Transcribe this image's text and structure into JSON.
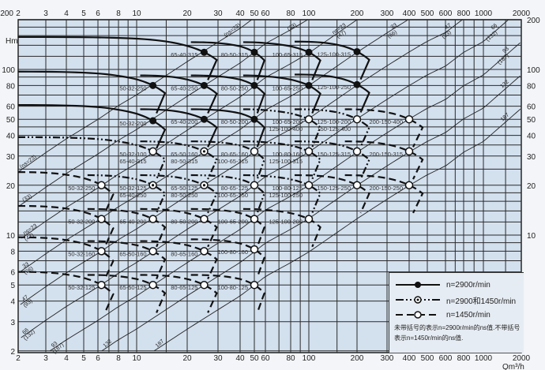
{
  "chart_data": {
    "type": "line",
    "title": "",
    "xlabel": "Qm³/h",
    "ylabel": "Hm",
    "x_scale": "log",
    "y_scale": "log",
    "xlim": [
      2,
      2000
    ],
    "ylim": [
      2,
      200
    ],
    "grid": true,
    "x_ticks": [
      "2",
      "3",
      "4",
      "5",
      "6",
      "8",
      "10",
      "20",
      "30",
      "40",
      "50",
      "60",
      "80",
      "100",
      "200",
      "300",
      "400",
      "500",
      "600",
      "800",
      "1000",
      "2000"
    ],
    "y_ticks_left": [
      "100",
      "80",
      "60",
      "50",
      "40",
      "30",
      "20",
      "10",
      "8",
      "6",
      "5",
      "4",
      "3",
      "2"
    ],
    "y_ticks_right": [
      "200",
      "100",
      "80",
      "60",
      "50",
      "40",
      "30",
      "20",
      "10"
    ],
    "corner_label": "200",
    "ns_lines": [
      {
        "ns_2900": 23,
        "labels_top": [
          "(ns=23)"
        ],
        "labels_left": [
          "(ns=23)"
        ]
      },
      {
        "ns_2900": 33,
        "labels_top": [
          "(33)"
        ],
        "labels_left": [
          "(33)"
        ]
      },
      {
        "ns_2900": 47,
        "labels_top": [
          "ns=23",
          "(47)"
        ],
        "labels_left": [
          "ns=23",
          "(47)"
        ]
      },
      {
        "ns_2900": 66,
        "labels_top": [
          "33",
          "(66)"
        ],
        "labels_left": [
          "33",
          "(66)"
        ]
      },
      {
        "ns_2900": 93,
        "labels_top": [
          "47",
          "(93)"
        ],
        "labels_left": [
          "47",
          "(93)"
        ]
      },
      {
        "ns_2900": 132,
        "labels_top": [
          "66",
          "(132)"
        ],
        "labels_left": [
          "66",
          "(132)"
        ]
      },
      {
        "ns_2900": 187,
        "labels_top": [
          "93",
          "(187)"
        ],
        "labels_left": [
          "93",
          "(187)"
        ]
      },
      {
        "ns_2900": 264,
        "labels_top": [
          "132"
        ],
        "labels_left": [
          "132"
        ]
      },
      {
        "ns_2900": 374,
        "labels_top": [
          "187"
        ],
        "labels_left": [
          "187"
        ]
      }
    ],
    "pumps": [
      {
        "labels": [
          "65-40-315"
        ],
        "q": 25,
        "h": 127,
        "speed": "2900",
        "marker": "filled",
        "q_start": 2,
        "h_start": 157
      },
      {
        "labels": [
          "80-50-315"
        ],
        "q": 50,
        "h": 127,
        "speed": "2900",
        "marker": "filled"
      },
      {
        "labels": [
          "100-65-315"
        ],
        "q": 100,
        "h": 127,
        "speed": "2900",
        "marker": "filled"
      },
      {
        "labels": [
          "125-100-315"
        ],
        "q": 200,
        "h": 128,
        "speed": "2900",
        "marker": "filled"
      },
      {
        "labels": [
          "50-32-250"
        ],
        "q": 12.5,
        "h": 80,
        "speed": "2900",
        "marker": "filled",
        "q_start": 2,
        "h_start": 97
      },
      {
        "labels": [
          "65-40-250"
        ],
        "q": 25,
        "h": 80,
        "speed": "2900",
        "marker": "filled"
      },
      {
        "labels": [
          "80-50-250"
        ],
        "q": 50,
        "h": 80,
        "speed": "2900",
        "marker": "filled"
      },
      {
        "labels": [
          "100-65-250"
        ],
        "q": 100,
        "h": 80,
        "speed": "2900",
        "marker": "filled"
      },
      {
        "labels": [
          "125-100-250"
        ],
        "q": 200,
        "h": 81,
        "speed": "2900",
        "marker": "filled"
      },
      {
        "labels": [
          "50-32-200"
        ],
        "q": 12.5,
        "h": 49,
        "speed": "2900",
        "marker": "filled",
        "q_start": 2,
        "h_start": 61
      },
      {
        "labels": [
          "65-40-200"
        ],
        "q": 25,
        "h": 50,
        "speed": "2900",
        "marker": "filled"
      },
      {
        "labels": [
          "80-50-200"
        ],
        "q": 50,
        "h": 50,
        "speed": "2900",
        "marker": "filled"
      },
      {
        "labels": [
          "100-65-200",
          "125-100-400"
        ],
        "q": 100,
        "h": 50,
        "speed": "both",
        "marker": "open"
      },
      {
        "labels": [
          "125-100-200",
          "150-125-400"
        ],
        "q": 200,
        "h": 50,
        "speed": "both",
        "marker": "open"
      },
      {
        "labels": [
          "200-150-400"
        ],
        "q": 400,
        "h": 50,
        "speed": "1450",
        "marker": "open"
      },
      {
        "labels": [
          "50-32-100",
          "65-40-315"
        ],
        "q": 12.5,
        "h": 32,
        "speed": "both",
        "marker": "open",
        "q_start": 2,
        "h_start": 39
      },
      {
        "labels": [
          "65-50-160",
          "80-50-315"
        ],
        "q": 25,
        "h": 32,
        "speed": "both",
        "marker": "dotted"
      },
      {
        "labels": [
          "80-65-160",
          "100-65-315"
        ],
        "q": 50,
        "h": 32,
        "speed": "both",
        "marker": "open"
      },
      {
        "labels": [
          "100-80-160",
          "125-100-315"
        ],
        "q": 100,
        "h": 32,
        "speed": "both",
        "marker": "open"
      },
      {
        "labels": [
          "150-125-315"
        ],
        "q": 200,
        "h": 32,
        "speed": "both",
        "marker": "open"
      },
      {
        "labels": [
          "200-150-315"
        ],
        "q": 400,
        "h": 32,
        "speed": "1450",
        "marker": "open"
      },
      {
        "labels": [
          "50-32-250"
        ],
        "q": 6.3,
        "h": 20,
        "speed": "1450",
        "marker": "open",
        "q_start": 2,
        "h_start": 24
      },
      {
        "labels": [
          "50-32-125",
          "65-40-250"
        ],
        "q": 12.5,
        "h": 20,
        "speed": "both",
        "marker": "dotted"
      },
      {
        "labels": [
          "65-50-125",
          "80-50-250"
        ],
        "q": 25,
        "h": 20,
        "speed": "both",
        "marker": "dotted"
      },
      {
        "labels": [
          "80-65-125",
          "100-65-250"
        ],
        "q": 50,
        "h": 20,
        "speed": "both",
        "marker": "open"
      },
      {
        "labels": [
          "100-80-125",
          "125-100-250"
        ],
        "q": 100,
        "h": 20,
        "speed": "both",
        "marker": "open"
      },
      {
        "labels": [
          "150-125-250"
        ],
        "q": 200,
        "h": 20,
        "speed": "1450",
        "marker": "open"
      },
      {
        "labels": [
          "200-150-250"
        ],
        "q": 400,
        "h": 20,
        "speed": "1450",
        "marker": "open"
      },
      {
        "labels": [
          "50-32-200"
        ],
        "q": 6.3,
        "h": 12.5,
        "speed": "1450",
        "marker": "open",
        "q_start": 2,
        "h_start": 15
      },
      {
        "labels": [
          "65-40-200"
        ],
        "q": 12.5,
        "h": 12.5,
        "speed": "1450",
        "marker": "open"
      },
      {
        "labels": [
          "80-50-200"
        ],
        "q": 25,
        "h": 12.5,
        "speed": "1450",
        "marker": "open"
      },
      {
        "labels": [
          "100-65-200"
        ],
        "q": 50,
        "h": 12.5,
        "speed": "1450",
        "marker": "open"
      },
      {
        "labels": [
          "125-100-200"
        ],
        "q": 100,
        "h": 12.5,
        "speed": "1450",
        "marker": "open"
      },
      {
        "labels": [
          "50-32-160"
        ],
        "q": 6.3,
        "h": 8,
        "speed": "1450",
        "marker": "open",
        "q_start": 2,
        "h_start": 9.7
      },
      {
        "labels": [
          "65-50-160"
        ],
        "q": 12.5,
        "h": 8,
        "speed": "1450",
        "marker": "open"
      },
      {
        "labels": [
          "80-65-160"
        ],
        "q": 25,
        "h": 8,
        "speed": "1450",
        "marker": "open"
      },
      {
        "labels": [
          "100-80-160"
        ],
        "q": 50,
        "h": 8.2,
        "speed": "1450",
        "marker": "open"
      },
      {
        "labels": [
          "50-32-125"
        ],
        "q": 6.3,
        "h": 5,
        "speed": "1450",
        "marker": "open",
        "q_start": 2,
        "h_start": 6
      },
      {
        "labels": [
          "65-50-125"
        ],
        "q": 12.5,
        "h": 5,
        "speed": "1450",
        "marker": "open"
      },
      {
        "labels": [
          "80-65-125"
        ],
        "q": 25,
        "h": 5,
        "speed": "1450",
        "marker": "open"
      },
      {
        "labels": [
          "100-80-125"
        ],
        "q": 50,
        "h": 5,
        "speed": "1450",
        "marker": "open"
      }
    ],
    "legend": {
      "placement": "bottom-right",
      "items": [
        {
          "style": "solid",
          "marker": "filled",
          "label": "n=2900r/min"
        },
        {
          "style": "dash-dot",
          "marker": "dotted",
          "label": "n=2900和1450r/min"
        },
        {
          "style": "dashed",
          "marker": "open",
          "label": "n=1450r/min"
        }
      ],
      "note": "未带括号的表示n=2900r/min的ns值.不带括号表示n=1450r/min的ns值."
    },
    "colors": {
      "plot_background": "#d3e0ee",
      "grid": "#2a2a2a",
      "curve": "#111111"
    }
  }
}
